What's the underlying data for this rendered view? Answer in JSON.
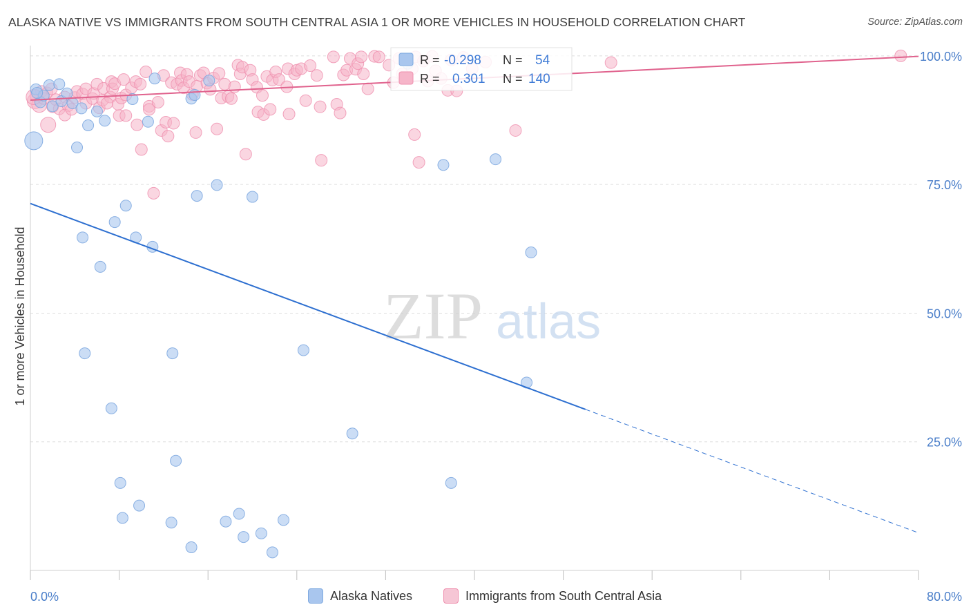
{
  "header": {
    "title": "ALASKA NATIVE VS IMMIGRANTS FROM SOUTH CENTRAL ASIA 1 OR MORE VEHICLES IN HOUSEHOLD CORRELATION CHART",
    "source": "Source: ZipAtlas.com"
  },
  "watermark": {
    "zip": "ZIP",
    "atlas": "atlas"
  },
  "legend_stats": [
    {
      "r_label": "R =",
      "r_value": "-0.298",
      "n_label": "N =",
      "n_value": "54"
    },
    {
      "r_label": "R =",
      "r_value": "0.301",
      "n_label": "N =",
      "n_value": "140"
    }
  ],
  "legend_bottom": [
    {
      "label": "Alaska Natives"
    },
    {
      "label": "Immigrants from South Central Asia"
    }
  ],
  "colors": {
    "blue_fill": "#a9c6ee",
    "blue_stroke": "#7ea9e0",
    "blue_line": "#2d6fd0",
    "pink_fill": "#f6b5c9",
    "pink_stroke": "#ef8fae",
    "pink_line": "#e0628d",
    "tick_label": "#4a7ec9",
    "grid": "#dddddd"
  },
  "chart_data": {
    "type": "scatter",
    "title": "ALASKA NATIVE VS IMMIGRANTS FROM SOUTH CENTRAL ASIA 1 OR MORE VEHICLES IN HOUSEHOLD CORRELATION CHART",
    "xlabel": "",
    "ylabel": "1 or more Vehicles in Household",
    "xlim": [
      0,
      80
    ],
    "ylim": [
      0,
      102
    ],
    "x_tick_labels": [
      "0.0%",
      "80.0%"
    ],
    "y_ticks": [
      25,
      50,
      75,
      100
    ],
    "y_tick_labels": [
      "25.0%",
      "50.0%",
      "75.0%",
      "100.0%"
    ],
    "grid": true,
    "legend_position": "top-center",
    "series": [
      {
        "name": "Alaska Natives",
        "r": -0.298,
        "n": 54,
        "trend": {
          "x": [
            0,
            50
          ],
          "y": [
            71.3,
            31.3
          ],
          "dashed_to": [
            80,
            7.3
          ]
        },
        "points": [
          {
            "x": 0.3,
            "y": 83.5,
            "s": 2
          },
          {
            "x": 0.5,
            "y": 93.5,
            "s": 1
          },
          {
            "x": 0.9,
            "y": 91.0,
            "s": 1
          },
          {
            "x": 1.2,
            "y": 92.3,
            "s": 1
          },
          {
            "x": 1.7,
            "y": 94.3,
            "s": 1
          },
          {
            "x": 2.0,
            "y": 90.2,
            "s": 1
          },
          {
            "x": 2.6,
            "y": 94.5,
            "s": 1
          },
          {
            "x": 2.8,
            "y": 91.2,
            "s": 1
          },
          {
            "x": 3.3,
            "y": 92.7,
            "s": 1
          },
          {
            "x": 3.8,
            "y": 90.8,
            "s": 1
          },
          {
            "x": 4.2,
            "y": 82.2,
            "s": 1
          },
          {
            "x": 4.6,
            "y": 89.8,
            "s": 1
          },
          {
            "x": 5.2,
            "y": 86.5,
            "s": 1
          },
          {
            "x": 6.0,
            "y": 89.2,
            "s": 1
          },
          {
            "x": 6.7,
            "y": 87.4,
            "s": 1
          },
          {
            "x": 7.6,
            "y": 67.7,
            "s": 1
          },
          {
            "x": 8.6,
            "y": 70.9,
            "s": 1
          },
          {
            "x": 9.5,
            "y": 64.7,
            "s": 1
          },
          {
            "x": 9.2,
            "y": 91.6,
            "s": 1
          },
          {
            "x": 10.6,
            "y": 87.2,
            "s": 1
          },
          {
            "x": 11.0,
            "y": 62.9,
            "s": 1
          },
          {
            "x": 4.7,
            "y": 64.7,
            "s": 1
          },
          {
            "x": 6.3,
            "y": 59.0,
            "s": 1
          },
          {
            "x": 4.9,
            "y": 42.2,
            "s": 1
          },
          {
            "x": 7.3,
            "y": 31.5,
            "s": 1
          },
          {
            "x": 8.1,
            "y": 17.0,
            "s": 1
          },
          {
            "x": 8.3,
            "y": 10.2,
            "s": 1
          },
          {
            "x": 9.8,
            "y": 12.6,
            "s": 1
          },
          {
            "x": 12.8,
            "y": 42.2,
            "s": 1
          },
          {
            "x": 13.1,
            "y": 21.3,
            "s": 1
          },
          {
            "x": 12.7,
            "y": 9.3,
            "s": 1
          },
          {
            "x": 14.5,
            "y": 4.5,
            "s": 1
          },
          {
            "x": 14.5,
            "y": 91.7,
            "s": 1
          },
          {
            "x": 15.0,
            "y": 72.8,
            "s": 1
          },
          {
            "x": 16.1,
            "y": 95.2,
            "s": 1
          },
          {
            "x": 16.8,
            "y": 74.9,
            "s": 1
          },
          {
            "x": 17.6,
            "y": 9.5,
            "s": 1
          },
          {
            "x": 18.8,
            "y": 11.0,
            "s": 1
          },
          {
            "x": 19.2,
            "y": 6.5,
            "s": 1
          },
          {
            "x": 20.0,
            "y": 72.6,
            "s": 1
          },
          {
            "x": 20.8,
            "y": 7.2,
            "s": 1
          },
          {
            "x": 21.8,
            "y": 3.5,
            "s": 1
          },
          {
            "x": 22.8,
            "y": 9.8,
            "s": 1
          },
          {
            "x": 24.6,
            "y": 42.8,
            "s": 1
          },
          {
            "x": 29.0,
            "y": 26.6,
            "s": 1
          },
          {
            "x": 34.0,
            "y": 98.5,
            "s": 1
          },
          {
            "x": 37.2,
            "y": 78.8,
            "s": 1
          },
          {
            "x": 37.9,
            "y": 17.0,
            "s": 1
          },
          {
            "x": 41.9,
            "y": 79.9,
            "s": 1
          },
          {
            "x": 44.7,
            "y": 36.5,
            "s": 1
          },
          {
            "x": 45.1,
            "y": 61.8,
            "s": 1
          },
          {
            "x": 14.8,
            "y": 92.4,
            "s": 1
          },
          {
            "x": 0.6,
            "y": 92.8,
            "s": 1
          },
          {
            "x": 11.2,
            "y": 95.6,
            "s": 1
          }
        ]
      },
      {
        "name": "Immigrants from South Central Asia",
        "r": 0.301,
        "n": 140,
        "trend": {
          "x": [
            0,
            80
          ],
          "y": [
            91.4,
            99.9
          ]
        },
        "points": [
          {
            "x": 0.4,
            "y": 91.2,
            "s": 2
          },
          {
            "x": 0.5,
            "y": 92.3,
            "s": 1
          },
          {
            "x": 0.8,
            "y": 90.5,
            "s": 2
          },
          {
            "x": 1.0,
            "y": 93.1,
            "s": 1
          },
          {
            "x": 1.2,
            "y": 91.7,
            "s": 1
          },
          {
            "x": 1.5,
            "y": 92.8,
            "s": 1
          },
          {
            "x": 1.6,
            "y": 86.6,
            "s": 2
          },
          {
            "x": 2.0,
            "y": 90.1,
            "s": 1
          },
          {
            "x": 2.3,
            "y": 91.5,
            "s": 1
          },
          {
            "x": 2.6,
            "y": 89.7,
            "s": 1
          },
          {
            "x": 3.1,
            "y": 92.0,
            "s": 1
          },
          {
            "x": 3.4,
            "y": 90.3,
            "s": 1
          },
          {
            "x": 3.1,
            "y": 88.5,
            "s": 1
          },
          {
            "x": 3.7,
            "y": 89.6,
            "s": 1
          },
          {
            "x": 4.0,
            "y": 91.9,
            "s": 1
          },
          {
            "x": 4.2,
            "y": 93.1,
            "s": 1
          },
          {
            "x": 4.7,
            "y": 92.6,
            "s": 1
          },
          {
            "x": 5.0,
            "y": 93.6,
            "s": 1
          },
          {
            "x": 5.0,
            "y": 90.8,
            "s": 1
          },
          {
            "x": 5.6,
            "y": 91.7,
            "s": 1
          },
          {
            "x": 5.7,
            "y": 92.7,
            "s": 1
          },
          {
            "x": 6.0,
            "y": 94.5,
            "s": 1
          },
          {
            "x": 6.2,
            "y": 89.9,
            "s": 1
          },
          {
            "x": 6.5,
            "y": 91.4,
            "s": 1
          },
          {
            "x": 6.6,
            "y": 93.7,
            "s": 1
          },
          {
            "x": 7.2,
            "y": 92.0,
            "s": 1
          },
          {
            "x": 7.3,
            "y": 95.0,
            "s": 1
          },
          {
            "x": 7.4,
            "y": 93.6,
            "s": 1
          },
          {
            "x": 7.6,
            "y": 94.6,
            "s": 1
          },
          {
            "x": 7.9,
            "y": 90.6,
            "s": 1
          },
          {
            "x": 8.0,
            "y": 88.4,
            "s": 1
          },
          {
            "x": 8.2,
            "y": 91.8,
            "s": 1
          },
          {
            "x": 8.4,
            "y": 95.4,
            "s": 1
          },
          {
            "x": 8.6,
            "y": 92.4,
            "s": 1
          },
          {
            "x": 8.6,
            "y": 88.4,
            "s": 1
          },
          {
            "x": 9.1,
            "y": 93.8,
            "s": 1
          },
          {
            "x": 9.5,
            "y": 95.0,
            "s": 1
          },
          {
            "x": 9.6,
            "y": 86.6,
            "s": 1
          },
          {
            "x": 9.9,
            "y": 94.5,
            "s": 1
          },
          {
            "x": 10.0,
            "y": 81.8,
            "s": 1
          },
          {
            "x": 10.4,
            "y": 96.9,
            "s": 1
          },
          {
            "x": 10.7,
            "y": 90.2,
            "s": 1
          },
          {
            "x": 10.7,
            "y": 89.6,
            "s": 1
          },
          {
            "x": 11.1,
            "y": 73.3,
            "s": 1
          },
          {
            "x": 11.5,
            "y": 91.0,
            "s": 1
          },
          {
            "x": 11.8,
            "y": 85.5,
            "s": 1
          },
          {
            "x": 12.0,
            "y": 96.2,
            "s": 1
          },
          {
            "x": 12.2,
            "y": 87.1,
            "s": 1
          },
          {
            "x": 12.4,
            "y": 84.4,
            "s": 1
          },
          {
            "x": 12.7,
            "y": 94.8,
            "s": 1
          },
          {
            "x": 12.9,
            "y": 86.9,
            "s": 1
          },
          {
            "x": 13.2,
            "y": 94.5,
            "s": 1
          },
          {
            "x": 13.5,
            "y": 96.7,
            "s": 1
          },
          {
            "x": 13.6,
            "y": 95.2,
            "s": 1
          },
          {
            "x": 13.8,
            "y": 93.8,
            "s": 1
          },
          {
            "x": 14.1,
            "y": 96.4,
            "s": 1
          },
          {
            "x": 14.3,
            "y": 95.0,
            "s": 1
          },
          {
            "x": 14.6,
            "y": 92.5,
            "s": 1
          },
          {
            "x": 14.9,
            "y": 85.1,
            "s": 1
          },
          {
            "x": 15.0,
            "y": 94.1,
            "s": 1
          },
          {
            "x": 15.3,
            "y": 96.2,
            "s": 1
          },
          {
            "x": 15.6,
            "y": 96.7,
            "s": 1
          },
          {
            "x": 15.9,
            "y": 94.7,
            "s": 1
          },
          {
            "x": 16.2,
            "y": 93.5,
            "s": 1
          },
          {
            "x": 16.5,
            "y": 95.7,
            "s": 1
          },
          {
            "x": 16.8,
            "y": 85.8,
            "s": 1
          },
          {
            "x": 17.0,
            "y": 96.6,
            "s": 1
          },
          {
            "x": 17.2,
            "y": 91.8,
            "s": 1
          },
          {
            "x": 17.5,
            "y": 94.5,
            "s": 1
          },
          {
            "x": 17.8,
            "y": 92.1,
            "s": 1
          },
          {
            "x": 18.1,
            "y": 91.7,
            "s": 1
          },
          {
            "x": 18.4,
            "y": 94.0,
            "s": 1
          },
          {
            "x": 18.7,
            "y": 98.2,
            "s": 1
          },
          {
            "x": 18.9,
            "y": 96.5,
            "s": 1
          },
          {
            "x": 19.1,
            "y": 97.8,
            "s": 1
          },
          {
            "x": 19.4,
            "y": 80.9,
            "s": 1
          },
          {
            "x": 19.8,
            "y": 97.2,
            "s": 1
          },
          {
            "x": 20.0,
            "y": 95.4,
            "s": 1
          },
          {
            "x": 20.4,
            "y": 93.9,
            "s": 1
          },
          {
            "x": 20.5,
            "y": 89.1,
            "s": 1
          },
          {
            "x": 20.9,
            "y": 92.3,
            "s": 1
          },
          {
            "x": 21.0,
            "y": 88.6,
            "s": 1
          },
          {
            "x": 21.3,
            "y": 96.0,
            "s": 1
          },
          {
            "x": 21.6,
            "y": 89.6,
            "s": 1
          },
          {
            "x": 21.8,
            "y": 95.3,
            "s": 1
          },
          {
            "x": 22.1,
            "y": 96.9,
            "s": 1
          },
          {
            "x": 22.4,
            "y": 95.4,
            "s": 1
          },
          {
            "x": 23.1,
            "y": 94.0,
            "s": 1
          },
          {
            "x": 23.2,
            "y": 97.5,
            "s": 1
          },
          {
            "x": 23.3,
            "y": 88.7,
            "s": 1
          },
          {
            "x": 23.8,
            "y": 96.5,
            "s": 1
          },
          {
            "x": 24.0,
            "y": 97.2,
            "s": 1
          },
          {
            "x": 24.4,
            "y": 97.5,
            "s": 1
          },
          {
            "x": 24.8,
            "y": 91.3,
            "s": 1
          },
          {
            "x": 25.2,
            "y": 98.1,
            "s": 1
          },
          {
            "x": 25.8,
            "y": 96.2,
            "s": 1
          },
          {
            "x": 26.1,
            "y": 90.1,
            "s": 1
          },
          {
            "x": 26.2,
            "y": 79.7,
            "s": 1
          },
          {
            "x": 27.3,
            "y": 99.8,
            "s": 1
          },
          {
            "x": 27.6,
            "y": 90.6,
            "s": 1
          },
          {
            "x": 27.9,
            "y": 88.9,
            "s": 1
          },
          {
            "x": 28.2,
            "y": 96.3,
            "s": 1
          },
          {
            "x": 28.5,
            "y": 97.2,
            "s": 1
          },
          {
            "x": 28.8,
            "y": 99.5,
            "s": 1
          },
          {
            "x": 29.3,
            "y": 97.4,
            "s": 1
          },
          {
            "x": 29.5,
            "y": 98.5,
            "s": 1
          },
          {
            "x": 29.8,
            "y": 99.8,
            "s": 1
          },
          {
            "x": 30.0,
            "y": 96.5,
            "s": 1
          },
          {
            "x": 30.4,
            "y": 93.6,
            "s": 1
          },
          {
            "x": 31.0,
            "y": 99.9,
            "s": 1
          },
          {
            "x": 31.4,
            "y": 99.8,
            "s": 1
          },
          {
            "x": 32.3,
            "y": 98.2,
            "s": 1
          },
          {
            "x": 32.7,
            "y": 94.8,
            "s": 1
          },
          {
            "x": 33.2,
            "y": 99.5,
            "s": 1
          },
          {
            "x": 33.5,
            "y": 96.5,
            "s": 1
          },
          {
            "x": 34.4,
            "y": 97.5,
            "s": 1
          },
          {
            "x": 34.7,
            "y": 99.8,
            "s": 1
          },
          {
            "x": 34.6,
            "y": 84.7,
            "s": 1
          },
          {
            "x": 35.0,
            "y": 79.3,
            "s": 1
          },
          {
            "x": 35.4,
            "y": 99.0,
            "s": 1
          },
          {
            "x": 35.8,
            "y": 95.1,
            "s": 1
          },
          {
            "x": 36.2,
            "y": 99.9,
            "s": 1
          },
          {
            "x": 36.5,
            "y": 97.1,
            "s": 1
          },
          {
            "x": 37.0,
            "y": 95.6,
            "s": 1
          },
          {
            "x": 37.6,
            "y": 93.3,
            "s": 1
          },
          {
            "x": 37.9,
            "y": 99.2,
            "s": 1
          },
          {
            "x": 38.4,
            "y": 93.2,
            "s": 1
          },
          {
            "x": 39.0,
            "y": 99.7,
            "s": 1
          },
          {
            "x": 39.8,
            "y": 97.5,
            "s": 1
          },
          {
            "x": 41.0,
            "y": 98.8,
            "s": 1
          },
          {
            "x": 43.7,
            "y": 85.5,
            "s": 1
          },
          {
            "x": 52.3,
            "y": 98.7,
            "s": 1
          },
          {
            "x": 78.4,
            "y": 100.0,
            "s": 1
          },
          {
            "x": 6.9,
            "y": 90.8,
            "s": 1
          },
          {
            "x": 0.3,
            "y": 92.0,
            "s": 2
          },
          {
            "x": 1.9,
            "y": 93.6,
            "s": 1
          }
        ]
      }
    ]
  }
}
